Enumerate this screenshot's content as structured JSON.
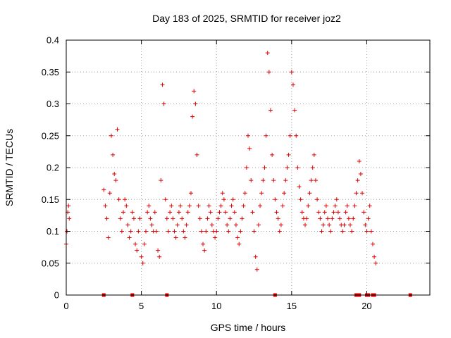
{
  "chart_data": {
    "type": "scatter",
    "title": "Day 183 of 2025, SRMTID for receiver joz2",
    "xlabel": "GPS time / hours",
    "ylabel": "SRMTID / TECUs",
    "xlim": [
      0,
      24.2
    ],
    "ylim": [
      0,
      0.4
    ],
    "grid": true,
    "marker": "+",
    "color": "#e00000",
    "x_ticks": [
      0,
      5,
      10,
      15,
      20
    ],
    "x_tick_labels": [
      "0",
      "5",
      "10",
      "15",
      "20"
    ],
    "y_ticks": [
      0,
      0.05,
      0.1,
      0.15,
      0.2,
      0.25,
      0.3,
      0.35,
      0.4
    ],
    "y_tick_labels": [
      "0",
      "0.05",
      "0.1",
      "0.15",
      "0.2",
      "0.25",
      "0.3",
      "0.35",
      "0.4"
    ],
    "series": [
      {
        "name": "SRMTID",
        "x": [
          0.0,
          0.05,
          0.1,
          0.15,
          0.2,
          2.5,
          2.6,
          2.7,
          2.8,
          2.9,
          3.0,
          3.1,
          3.2,
          3.3,
          3.4,
          3.5,
          3.6,
          3.7,
          3.8,
          3.9,
          4.0,
          4.1,
          4.2,
          4.3,
          4.4,
          4.5,
          4.6,
          4.7,
          4.8,
          4.9,
          5.0,
          5.1,
          5.2,
          5.3,
          5.4,
          5.5,
          5.6,
          5.7,
          5.8,
          5.9,
          6.0,
          6.1,
          6.2,
          6.3,
          6.4,
          6.5,
          6.6,
          6.7,
          6.8,
          6.9,
          7.0,
          7.1,
          7.2,
          7.3,
          7.4,
          7.5,
          7.6,
          7.7,
          7.8,
          7.9,
          8.0,
          8.1,
          8.2,
          8.3,
          8.4,
          8.5,
          8.6,
          8.7,
          8.8,
          8.9,
          9.0,
          9.1,
          9.2,
          9.3,
          9.4,
          9.5,
          9.6,
          9.7,
          9.8,
          9.9,
          10.0,
          10.1,
          10.2,
          10.3,
          10.4,
          10.5,
          10.6,
          10.7,
          10.8,
          10.9,
          11.0,
          11.1,
          11.2,
          11.3,
          11.4,
          11.5,
          11.6,
          11.7,
          11.8,
          11.9,
          12.0,
          12.1,
          12.2,
          12.3,
          12.4,
          12.5,
          12.6,
          12.7,
          12.8,
          12.9,
          13.0,
          13.1,
          13.2,
          13.3,
          13.4,
          13.5,
          13.6,
          13.7,
          13.8,
          13.9,
          14.0,
          14.1,
          14.2,
          14.3,
          14.4,
          14.5,
          14.6,
          14.7,
          14.8,
          14.9,
          15.0,
          15.1,
          15.2,
          15.3,
          15.4,
          15.5,
          15.6,
          15.7,
          15.8,
          15.9,
          16.0,
          16.1,
          16.2,
          16.3,
          16.4,
          16.5,
          16.6,
          16.7,
          16.8,
          16.9,
          17.0,
          17.1,
          17.2,
          17.3,
          17.4,
          17.5,
          17.6,
          17.7,
          17.8,
          17.9,
          18.0,
          18.1,
          18.2,
          18.3,
          18.4,
          18.5,
          18.6,
          18.7,
          18.8,
          18.9,
          19.0,
          19.1,
          19.2,
          19.3,
          19.4,
          19.5,
          19.6,
          19.7,
          19.8,
          19.9,
          20.0,
          20.1,
          20.2,
          20.3,
          20.4,
          20.5,
          20.6
        ],
        "y": [
          0.08,
          0.1,
          0.13,
          0.14,
          0.12,
          0.165,
          0.14,
          0.12,
          0.09,
          0.16,
          0.25,
          0.22,
          0.19,
          0.18,
          0.26,
          0.15,
          0.12,
          0.1,
          0.13,
          0.15,
          0.14,
          0.11,
          0.09,
          0.1,
          0.13,
          0.12,
          0.08,
          0.07,
          0.1,
          0.12,
          0.06,
          0.05,
          0.08,
          0.1,
          0.13,
          0.14,
          0.12,
          0.11,
          0.1,
          0.13,
          0.1,
          0.07,
          0.06,
          0.18,
          0.33,
          0.3,
          0.15,
          0.12,
          0.1,
          0.13,
          0.14,
          0.12,
          0.1,
          0.09,
          0.11,
          0.13,
          0.14,
          0.12,
          0.1,
          0.09,
          0.11,
          0.13,
          0.14,
          0.16,
          0.28,
          0.32,
          0.3,
          0.22,
          0.14,
          0.12,
          0.1,
          0.08,
          0.07,
          0.1,
          0.12,
          0.14,
          0.13,
          0.11,
          0.1,
          0.09,
          0.1,
          0.12,
          0.13,
          0.14,
          0.16,
          0.15,
          0.13,
          0.11,
          0.1,
          0.12,
          0.14,
          0.15,
          0.13,
          0.11,
          0.09,
          0.08,
          0.1,
          0.12,
          0.14,
          0.16,
          0.2,
          0.25,
          0.23,
          0.18,
          0.13,
          0.1,
          0.06,
          0.04,
          0.11,
          0.14,
          0.16,
          0.18,
          0.2,
          0.25,
          0.38,
          0.35,
          0.29,
          0.22,
          0.18,
          0.15,
          0.13,
          0.12,
          0.1,
          0.11,
          0.14,
          0.16,
          0.18,
          0.2,
          0.22,
          0.25,
          0.35,
          0.33,
          0.29,
          0.25,
          0.2,
          0.17,
          0.15,
          0.13,
          0.12,
          0.11,
          0.12,
          0.14,
          0.16,
          0.18,
          0.2,
          0.22,
          0.18,
          0.15,
          0.13,
          0.12,
          0.1,
          0.11,
          0.13,
          0.14,
          0.12,
          0.11,
          0.1,
          0.12,
          0.13,
          0.14,
          0.15,
          0.13,
          0.12,
          0.11,
          0.1,
          0.11,
          0.13,
          0.14,
          0.12,
          0.11,
          0.1,
          0.12,
          0.14,
          0.16,
          0.18,
          0.21,
          0.19,
          0.16,
          0.13,
          0.11,
          0.1,
          0.12,
          0.14,
          0.1,
          0.08,
          0.06,
          0.05
        ]
      }
    ],
    "zero_markers": [
      2.5,
      4.4,
      6.7,
      13.9,
      19.3,
      19.4,
      19.5,
      20.0,
      20.1,
      20.4,
      20.5,
      22.9
    ]
  }
}
